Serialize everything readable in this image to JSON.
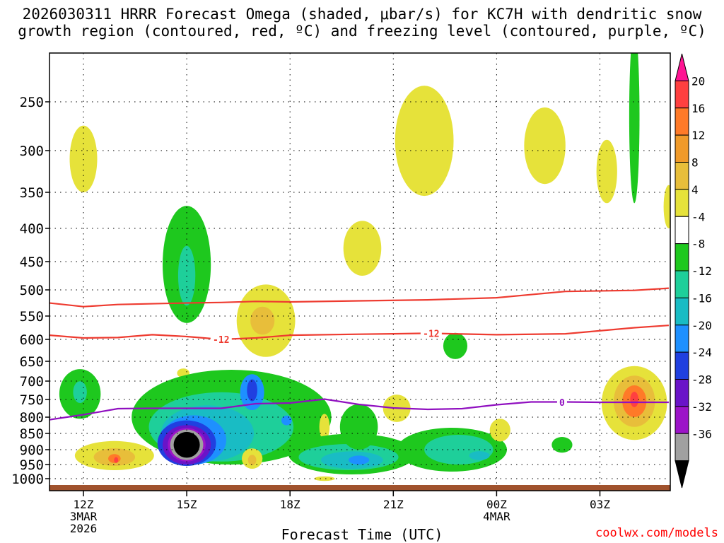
{
  "chart_data": {
    "type": "contour-time-height",
    "title_line1": "2026030311 HRRR Forecast Omega (shaded, μbar/s) for KC7H with dendritic snow",
    "title_line2": "growth region (contoured, red, ºC) and freezing level (contoured, purple, ºC)",
    "xlabel": "Forecast Time (UTC)",
    "credit": "coolwx.com/models",
    "x_hours": [
      12,
      27
    ],
    "x_ticks": [
      {
        "hour": 12,
        "label": "12Z",
        "sub1": "3MAR",
        "sub2": "2026"
      },
      {
        "hour": 15,
        "label": "15Z",
        "sub1": "",
        "sub2": ""
      },
      {
        "hour": 18,
        "label": "18Z",
        "sub1": "",
        "sub2": ""
      },
      {
        "hour": 21,
        "label": "21Z",
        "sub1": "",
        "sub2": ""
      },
      {
        "hour": 24,
        "label": "00Z",
        "sub1": "4MAR",
        "sub2": ""
      },
      {
        "hour": 27,
        "label": "03Z",
        "sub1": "",
        "sub2": ""
      }
    ],
    "pressure_levels": [
      "250",
      "300",
      "350",
      "400",
      "450",
      "500",
      "550",
      "600",
      "650",
      "700",
      "750",
      "800",
      "850",
      "900",
      "950",
      "1000"
    ],
    "colorbar": {
      "labels": [
        "20",
        "16",
        "12",
        "8",
        "4",
        "-4",
        "-8",
        "-12",
        "-16",
        "-20",
        "-24",
        "-28",
        "-32",
        "-36"
      ],
      "colors": [
        "#ff1493",
        "#ff4040",
        "#ff7a28",
        "#f09a2a",
        "#e8be3a",
        "#e6e23a",
        "#ffffff",
        "#1ec81e",
        "#1ecf9a",
        "#19bcc4",
        "#1e90ff",
        "#2040e0",
        "#6a14c8",
        "#9c14c8",
        "#a0a0a0",
        "#000000"
      ]
    },
    "contours": [
      {
        "name": "dgz-warm-edge",
        "value": "",
        "color": "#ee3b30",
        "points": [
          [
            11.0,
            525
          ],
          [
            12.0,
            532
          ],
          [
            13.0,
            528
          ],
          [
            15.0,
            525
          ],
          [
            16.0,
            524
          ],
          [
            17.0,
            522
          ],
          [
            18.0,
            523
          ],
          [
            20.0,
            521
          ],
          [
            22.0,
            519
          ],
          [
            24.0,
            515
          ],
          [
            26.0,
            503
          ],
          [
            28.0,
            501
          ],
          [
            29.0,
            497
          ]
        ]
      },
      {
        "name": "dgz-cold-edge",
        "value": "-12",
        "color": "#ee3b30",
        "points": [
          [
            11.0,
            591
          ],
          [
            12.0,
            597
          ],
          [
            13.0,
            596
          ],
          [
            14.0,
            590
          ],
          [
            15.0,
            594
          ],
          [
            16.0,
            600
          ],
          [
            17.0,
            597
          ],
          [
            18.0,
            591
          ],
          [
            20.0,
            589
          ],
          [
            21.0,
            588
          ],
          [
            22.0,
            587
          ],
          [
            24.0,
            590
          ],
          [
            26.0,
            588
          ],
          [
            28.0,
            575
          ],
          [
            29.0,
            570
          ]
        ]
      },
      {
        "name": "freezing-level",
        "value": "0",
        "color": "#9010c0",
        "points": [
          [
            11.0,
            808
          ],
          [
            12.0,
            793
          ],
          [
            13.0,
            776
          ],
          [
            14.0,
            775
          ],
          [
            15.0,
            775
          ],
          [
            16.0,
            775
          ],
          [
            17.0,
            762
          ],
          [
            18.0,
            760
          ],
          [
            19.0,
            749
          ],
          [
            20.0,
            764
          ],
          [
            21.0,
            774
          ],
          [
            22.0,
            778
          ],
          [
            23.0,
            776
          ],
          [
            24.0,
            765
          ],
          [
            25.0,
            757
          ],
          [
            26.0,
            757
          ],
          [
            27.0,
            758
          ],
          [
            29.0,
            758
          ]
        ]
      }
    ],
    "contour_labels": [
      {
        "text": "-12",
        "hour": 16.0,
        "p": 600,
        "color": "#ee3b30"
      },
      {
        "text": "-12",
        "hour": 22.1,
        "p": 587,
        "color": "#ee3b30"
      },
      {
        "text": "0",
        "hour": 25.9,
        "p": 758,
        "color": "#9010c0"
      }
    ],
    "regions": [
      {
        "name": "omega-upward-12z-yellow",
        "value": 4,
        "color": "#e6e23a",
        "hour": 12.0,
        "p": 310,
        "rx": 0.4,
        "ry": 40
      },
      {
        "name": "omega-upward-15z-green",
        "value": -4,
        "color": "#1ec81e",
        "hour": 15.0,
        "p": 455,
        "rx": 0.7,
        "ry": 110
      },
      {
        "name": "omega-upward-15z-teal",
        "value": -8,
        "color": "#1ecf9a",
        "hour": 15.0,
        "p": 475,
        "rx": 0.25,
        "ry": 55
      },
      {
        "name": "omega-yellow-18z-upper",
        "value": 4,
        "color": "#e6e23a",
        "hour": 17.3,
        "p": 560,
        "rx": 0.85,
        "ry": 80
      },
      {
        "name": "omega-orange-18z-upper",
        "value": 8,
        "color": "#e8be3a",
        "hour": 17.2,
        "p": 560,
        "rx": 0.35,
        "ry": 30
      },
      {
        "name": "omega-yellow-20z-mid",
        "value": 4,
        "color": "#e6e23a",
        "hour": 20.1,
        "p": 430,
        "rx": 0.55,
        "ry": 45
      },
      {
        "name": "omega-yellow-22z-top",
        "value": 4,
        "color": "#e6e23a",
        "hour": 21.9,
        "p": 290,
        "rx": 0.85,
        "ry": 65
      },
      {
        "name": "omega-yellow-25z-top",
        "value": 4,
        "color": "#e6e23a",
        "hour": 25.4,
        "p": 295,
        "rx": 0.6,
        "ry": 45
      },
      {
        "name": "omega-yellow-27z-top",
        "value": 4,
        "color": "#e6e23a",
        "hour": 27.2,
        "p": 325,
        "rx": 0.3,
        "ry": 40
      },
      {
        "name": "omega-green-28z-spike",
        "value": -4,
        "color": "#1ec81e",
        "hour": 28.0,
        "p": 265,
        "rx": 0.15,
        "ry": 100
      },
      {
        "name": "omega-yellow-29z-edge",
        "value": 4,
        "color": "#e6e23a",
        "hour": 29.0,
        "p": 370,
        "rx": 0.15,
        "ry": 30
      },
      {
        "name": "omega-green-23z-small",
        "value": -4,
        "color": "#1ec81e",
        "hour": 22.8,
        "p": 615,
        "rx": 0.35,
        "ry": 30
      },
      {
        "name": "omega-yellow-15z-dot",
        "value": 4,
        "color": "#e6e23a",
        "hour": 14.9,
        "p": 680,
        "rx": 0.18,
        "ry": 12
      },
      {
        "name": "omega-green-12z-low",
        "value": -4,
        "color": "#1ec81e",
        "hour": 11.9,
        "p": 735,
        "rx": 0.6,
        "ry": 70
      },
      {
        "name": "omega-teal-12z-low",
        "value": -8,
        "color": "#1ecf9a",
        "hour": 11.9,
        "p": 730,
        "rx": 0.2,
        "ry": 30
      },
      {
        "name": "omega-yellow-13z-low",
        "value": 4,
        "color": "#e6e23a",
        "hour": 12.9,
        "p": 920,
        "rx": 1.15,
        "ry": 50
      },
      {
        "name": "omega-orange-13z-low",
        "value": 8,
        "color": "#e8be3a",
        "hour": 12.9,
        "p": 925,
        "rx": 0.6,
        "ry": 30
      },
      {
        "name": "omega-deeporange-13z-low",
        "value": 12,
        "color": "#ff7a28",
        "hour": 12.9,
        "p": 930,
        "rx": 0.18,
        "ry": 15
      },
      {
        "name": "omega-red-13z-low",
        "value": 16,
        "color": "#ff4040",
        "hour": 12.95,
        "p": 935,
        "rx": 0.06,
        "ry": 10
      },
      {
        "name": "omega-core-green",
        "value": -4,
        "color": "#1ec81e",
        "hour": 16.3,
        "p": 800,
        "rx": 2.9,
        "ry": 150
      },
      {
        "name": "omega-core-teal",
        "value": -8,
        "color": "#1ecf9a",
        "hour": 16.0,
        "p": 830,
        "rx": 2.1,
        "ry": 110
      },
      {
        "name": "omega-core-cyan",
        "value": -12,
        "color": "#19bcc4",
        "hour": 15.6,
        "p": 850,
        "rx": 1.35,
        "ry": 90
      },
      {
        "name": "omega-core-blue",
        "value": -16,
        "color": "#1e90ff",
        "hour": 15.2,
        "p": 870,
        "rx": 0.95,
        "ry": 80
      },
      {
        "name": "omega-core-darkblue",
        "value": -20,
        "color": "#2040e0",
        "hour": 15.0,
        "p": 880,
        "rx": 0.85,
        "ry": 75
      },
      {
        "name": "omega-core-purple",
        "value": -24,
        "color": "#6a14c8",
        "hour": 15.0,
        "p": 885,
        "rx": 0.7,
        "ry": 65
      },
      {
        "name": "omega-core-violet",
        "value": -28,
        "color": "#9c14c8",
        "hour": 15.0,
        "p": 885,
        "rx": 0.55,
        "ry": 55
      },
      {
        "name": "omega-core-gray",
        "value": -32,
        "color": "#a0a0a0",
        "hour": 15.0,
        "p": 885,
        "rx": 0.48,
        "ry": 50
      },
      {
        "name": "omega-core-black",
        "value": -36,
        "color": "#000000",
        "hour": 15.0,
        "p": 885,
        "rx": 0.38,
        "ry": 42
      },
      {
        "name": "omega-17z-blue-lobe",
        "value": -16,
        "color": "#1e90ff",
        "hour": 16.9,
        "p": 730,
        "rx": 0.35,
        "ry": 50
      },
      {
        "name": "omega-17z-darkblue-lobe",
        "value": -20,
        "color": "#2040e0",
        "hour": 16.9,
        "p": 725,
        "rx": 0.15,
        "ry": 30
      },
      {
        "name": "omega-18z-blue-small",
        "value": -16,
        "color": "#1e90ff",
        "hour": 17.9,
        "p": 810,
        "rx": 0.15,
        "ry": 15
      },
      {
        "name": "omega-17z-yellow-low",
        "value": 4,
        "color": "#e6e23a",
        "hour": 16.9,
        "p": 930,
        "rx": 0.3,
        "ry": 35
      },
      {
        "name": "omega-17z-orange-low",
        "value": 8,
        "color": "#e8be3a",
        "hour": 16.9,
        "p": 935,
        "rx": 0.12,
        "ry": 18
      },
      {
        "name": "omega-19z-yellow-spike",
        "value": 4,
        "color": "#e6e23a",
        "hour": 19.0,
        "p": 830,
        "rx": 0.15,
        "ry": 40
      },
      {
        "name": "omega-19z-yellow-bottom",
        "value": 4,
        "color": "#e6e23a",
        "hour": 19.0,
        "p": 1000,
        "rx": 0.3,
        "ry": 8
      },
      {
        "name": "omega-low-band-green",
        "value": -4,
        "color": "#1ec81e",
        "hour": 19.8,
        "p": 915,
        "rx": 1.85,
        "ry": 70
      },
      {
        "name": "omega-low-band-teal",
        "value": -8,
        "color": "#1ecf9a",
        "hour": 19.7,
        "p": 925,
        "rx": 1.45,
        "ry": 45
      },
      {
        "name": "omega-low-band-cyan",
        "value": -12,
        "color": "#19bcc4",
        "hour": 19.8,
        "p": 935,
        "rx": 0.9,
        "ry": 30
      },
      {
        "name": "omega-low-band-blue",
        "value": -16,
        "color": "#1e90ff",
        "hour": 20.0,
        "p": 935,
        "rx": 0.3,
        "ry": 15
      },
      {
        "name": "omega-20z-green-tower",
        "value": -4,
        "color": "#1ec81e",
        "hour": 20.0,
        "p": 830,
        "rx": 0.55,
        "ry": 70
      },
      {
        "name": "omega-21z-yellow-low",
        "value": 4,
        "color": "#e6e23a",
        "hour": 21.1,
        "p": 775,
        "rx": 0.4,
        "ry": 40
      },
      {
        "name": "omega-23z-green-low",
        "value": -4,
        "color": "#1ec81e",
        "hour": 22.7,
        "p": 900,
        "rx": 1.6,
        "ry": 75
      },
      {
        "name": "omega-23z-teal-low",
        "value": -8,
        "color": "#1ecf9a",
        "hour": 22.9,
        "p": 900,
        "rx": 1.0,
        "ry": 50
      },
      {
        "name": "omega-23z-cyan-low",
        "value": -12,
        "color": "#19bcc4",
        "hour": 23.5,
        "p": 920,
        "rx": 0.3,
        "ry": 15
      },
      {
        "name": "omega-24z-yellow-low",
        "value": 4,
        "color": "#e6e23a",
        "hour": 24.1,
        "p": 840,
        "rx": 0.3,
        "ry": 35
      },
      {
        "name": "omega-26z-green-low",
        "value": -4,
        "color": "#1ec81e",
        "hour": 25.9,
        "p": 885,
        "rx": 0.3,
        "ry": 25
      },
      {
        "name": "omega-28z-yellow-low",
        "value": 4,
        "color": "#e6e23a",
        "hour": 28.0,
        "p": 760,
        "rx": 0.95,
        "ry": 110
      },
      {
        "name": "omega-28z-orange-low",
        "value": 8,
        "color": "#e8be3a",
        "hour": 28.0,
        "p": 755,
        "rx": 0.6,
        "ry": 75
      },
      {
        "name": "omega-28z-deeporange-low",
        "value": 12,
        "color": "#ff7a28",
        "hour": 28.0,
        "p": 755,
        "rx": 0.35,
        "ry": 45
      },
      {
        "name": "omega-28z-red-low",
        "value": 16,
        "color": "#ff4040",
        "hour": 28.0,
        "p": 750,
        "rx": 0.12,
        "ry": 22
      }
    ]
  }
}
